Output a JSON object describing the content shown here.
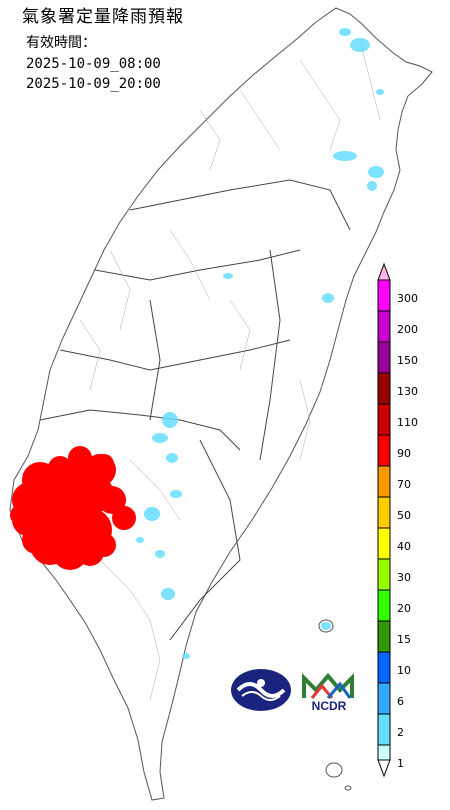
{
  "title": "氣象署定量降雨預報",
  "valid_label": "有效時間：",
  "valid_start": "2025-10-09_08:00",
  "valid_end": "2025-10-09_20:00",
  "legend": {
    "levels": [
      "300",
      "200",
      "150",
      "130",
      "110",
      "90",
      "70",
      "50",
      "40",
      "30",
      "20",
      "15",
      "10",
      "6",
      "2",
      "1"
    ],
    "colors": [
      "#ff00ff",
      "#cc00cc",
      "#990099",
      "#990000",
      "#cc0000",
      "#ff0000",
      "#ff9900",
      "#ffcc00",
      "#ffff00",
      "#99ff00",
      "#33ff00",
      "#339900",
      "#0066ff",
      "#33aaff",
      "#66ddff",
      "#ccffff"
    ],
    "top_color": "#ffb3e6"
  },
  "logos": {
    "cwa": "氣象署",
    "ncdr": "NCDR"
  },
  "rain_colors": {
    "heavy": "#ff0000",
    "light": "#66ddff"
  }
}
